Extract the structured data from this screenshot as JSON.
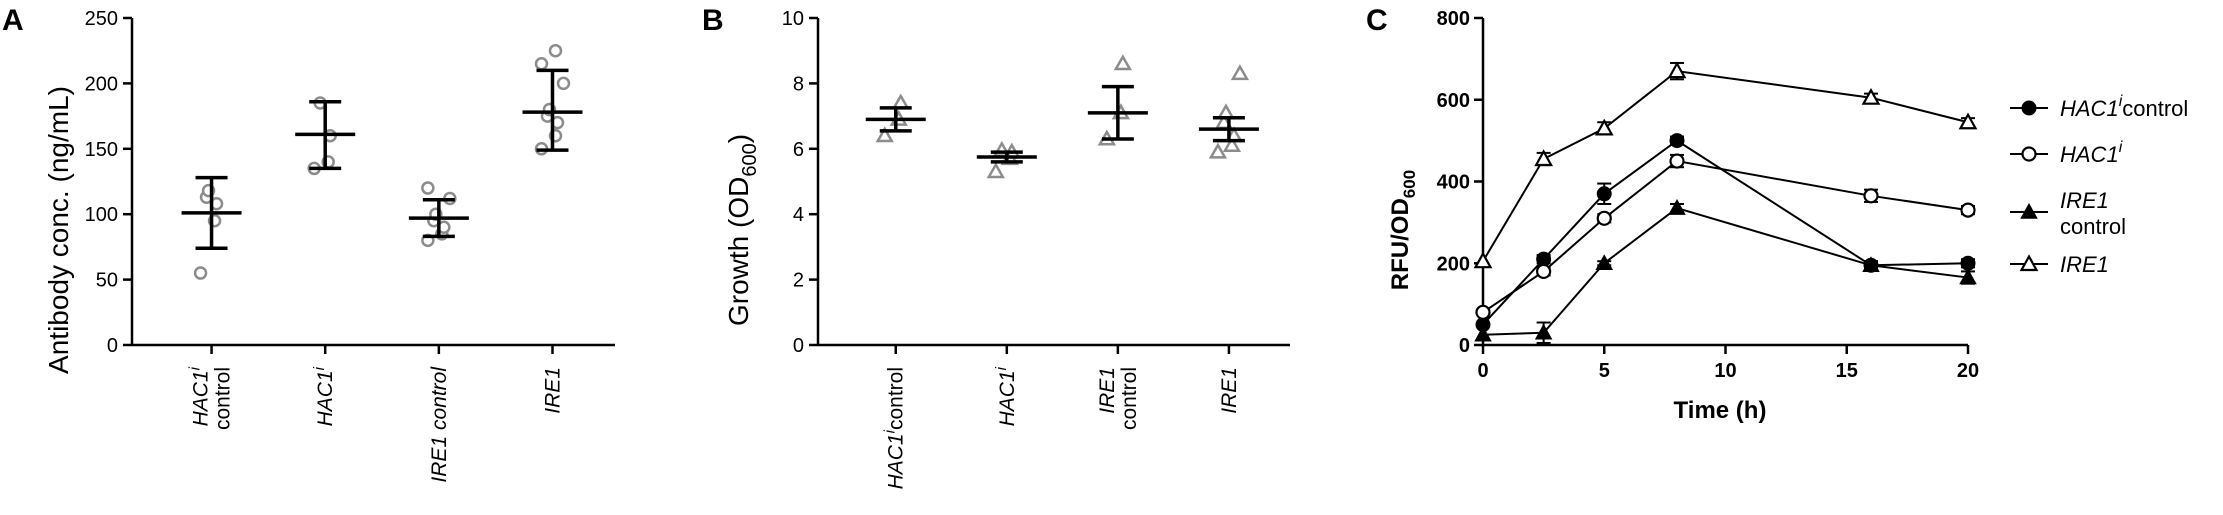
{
  "chart_data": [
    {
      "panel": "A",
      "type": "scatter",
      "ylabel": "Antibody conc. (ng/mL)",
      "ylim": [
        0,
        250
      ],
      "yticks": [
        0,
        50,
        100,
        150,
        200,
        250
      ],
      "categories": [
        {
          "lines": [
            {
              "text": "HAC1",
              "italic": true,
              "sup": "i"
            },
            {
              "text": "control",
              "italic": false
            }
          ]
        },
        {
          "lines": [
            {
              "text": "HAC1",
              "italic": true,
              "sup": "i"
            }
          ]
        },
        {
          "lines": [
            {
              "text": "IRE1 control",
              "italic": true
            }
          ]
        },
        {
          "lines": [
            {
              "text": "IRE1",
              "italic": true
            }
          ]
        }
      ],
      "marker": "circle",
      "marker_color": "#8c8c8c",
      "groups": [
        {
          "points": [
            55,
            95,
            108,
            113,
            118
          ],
          "mean": 101,
          "err": [
            74,
            128
          ]
        },
        {
          "points": [
            135,
            140,
            160,
            185
          ],
          "mean": 161,
          "err": [
            135,
            186
          ]
        },
        {
          "points": [
            80,
            85,
            90,
            95,
            100,
            112,
            120
          ],
          "mean": 97,
          "err": [
            83,
            111
          ]
        },
        {
          "points": [
            150,
            160,
            170,
            175,
            180,
            200,
            215,
            225
          ],
          "mean": 178,
          "err": [
            149,
            210
          ]
        }
      ]
    },
    {
      "panel": "B",
      "type": "scatter",
      "ylabel": "Growth (OD600)",
      "ylim": [
        0,
        10
      ],
      "yticks": [
        0,
        2,
        4,
        6,
        8,
        10
      ],
      "categories": [
        {
          "lines": [
            {
              "text": "HAC1",
              "italic": true,
              "sup": "i",
              "suffix": "control"
            }
          ]
        },
        {
          "lines": [
            {
              "text": "HAC1",
              "italic": true,
              "sup": "i"
            }
          ]
        },
        {
          "lines": [
            {
              "text": "IRE1",
              "italic": true
            },
            {
              "text": "control",
              "italic": false
            }
          ]
        },
        {
          "lines": [
            {
              "text": "IRE1",
              "italic": true
            }
          ]
        }
      ],
      "marker": "triangle",
      "marker_color": "#8c8c8c",
      "groups": [
        {
          "points": [
            6.4,
            6.9,
            7.4
          ],
          "mean": 6.9,
          "err": [
            6.55,
            7.25
          ]
        },
        {
          "points": [
            5.3,
            5.7,
            5.9,
            5.95
          ],
          "mean": 5.75,
          "err": [
            5.6,
            5.9
          ]
        },
        {
          "points": [
            6.3,
            7.1,
            8.6
          ],
          "mean": 7.1,
          "err": [
            6.3,
            7.9
          ]
        },
        {
          "points": [
            5.9,
            6.1,
            6.4,
            6.8,
            7.1,
            8.3
          ],
          "mean": 6.6,
          "err": [
            6.25,
            6.95
          ]
        }
      ]
    },
    {
      "panel": "C",
      "type": "line",
      "xlabel": "Time (h)",
      "ylabel": "RFU/OD600",
      "xlim": [
        0,
        20
      ],
      "ylim": [
        0,
        800
      ],
      "xticks": [
        0,
        5,
        10,
        15,
        20
      ],
      "yticks": [
        0,
        200,
        400,
        600,
        800
      ],
      "x": [
        0,
        2.5,
        5,
        8,
        16,
        20
      ],
      "legend_position": "right",
      "series": [
        {
          "name": "HAC1",
          "sup": "i",
          "suffix": "control",
          "marker": "filled-circle",
          "values": [
            50,
            210,
            370,
            500,
            195,
            200
          ],
          "errors": [
            0,
            10,
            25,
            10,
            10,
            10
          ]
        },
        {
          "name": "HAC1",
          "sup": "i",
          "suffix": "",
          "marker": "open-circle",
          "values": [
            80,
            180,
            310,
            450,
            365,
            330
          ],
          "errors": [
            0,
            10,
            10,
            15,
            15,
            10
          ]
        },
        {
          "name": "IRE1",
          "sup": "",
          "suffix": "control",
          "marker": "filled-triangle",
          "values": [
            25,
            30,
            200,
            335,
            195,
            165
          ],
          "errors": [
            0,
            25,
            5,
            10,
            10,
            15
          ]
        },
        {
          "name": "IRE1",
          "sup": "",
          "suffix": "",
          "marker": "open-triangle",
          "values": [
            205,
            455,
            530,
            670,
            605,
            545
          ],
          "errors": [
            0,
            15,
            15,
            20,
            10,
            10
          ]
        }
      ]
    }
  ]
}
